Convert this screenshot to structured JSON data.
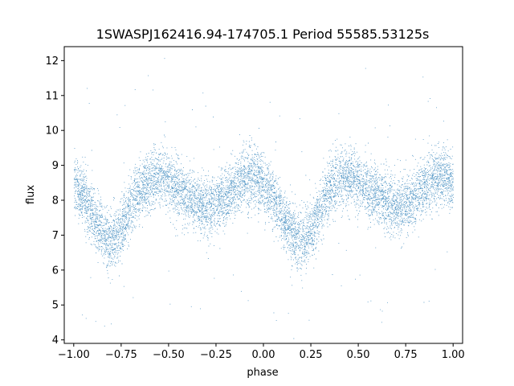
{
  "chart_data": {
    "type": "scatter",
    "title": "1SWASPJ162416.94-174705.1 Period 55585.53125s",
    "xlabel": "phase",
    "ylabel": "flux",
    "xlim": [
      -1.05,
      1.05
    ],
    "ylim": [
      3.9,
      12.4
    ],
    "x_ticks": [
      -1.0,
      -0.75,
      -0.5,
      -0.25,
      0.0,
      0.25,
      0.5,
      0.75,
      1.0
    ],
    "x_tick_labels": [
      "−1.00",
      "−0.75",
      "−0.50",
      "−0.25",
      "0.00",
      "0.25",
      "0.50",
      "0.75",
      "1.00"
    ],
    "y_ticks": [
      4,
      5,
      6,
      7,
      8,
      9,
      10,
      11,
      12
    ],
    "y_tick_labels": [
      "4",
      "5",
      "6",
      "7",
      "8",
      "9",
      "10",
      "11",
      "12"
    ],
    "grid": false,
    "marker_color": "#1f77b4",
    "series": [
      {
        "x": [
          -1.0,
          -0.95,
          -0.9,
          -0.85,
          -0.8,
          -0.75,
          -0.7,
          -0.65,
          -0.6,
          -0.55,
          -0.5,
          -0.45,
          -0.4,
          -0.35,
          -0.3,
          -0.25,
          -0.2,
          -0.15,
          -0.1,
          -0.05,
          0.0,
          0.05,
          0.1,
          0.15,
          0.2,
          0.25,
          0.3,
          0.35,
          0.4,
          0.45,
          0.5,
          0.55,
          0.6,
          0.65,
          0.7,
          0.75,
          0.8,
          0.85,
          0.9,
          0.95,
          1.0
        ],
        "y": [
          8.5,
          8.1,
          7.5,
          7.0,
          6.8,
          7.1,
          7.8,
          8.3,
          8.6,
          8.7,
          8.5,
          8.3,
          8.1,
          7.9,
          7.8,
          7.9,
          8.1,
          8.4,
          8.6,
          8.7,
          8.5,
          8.1,
          7.5,
          7.0,
          6.8,
          7.1,
          7.8,
          8.3,
          8.6,
          8.7,
          8.5,
          8.3,
          8.1,
          7.9,
          7.8,
          7.9,
          8.1,
          8.4,
          8.6,
          8.7,
          8.5
        ]
      }
    ]
  }
}
